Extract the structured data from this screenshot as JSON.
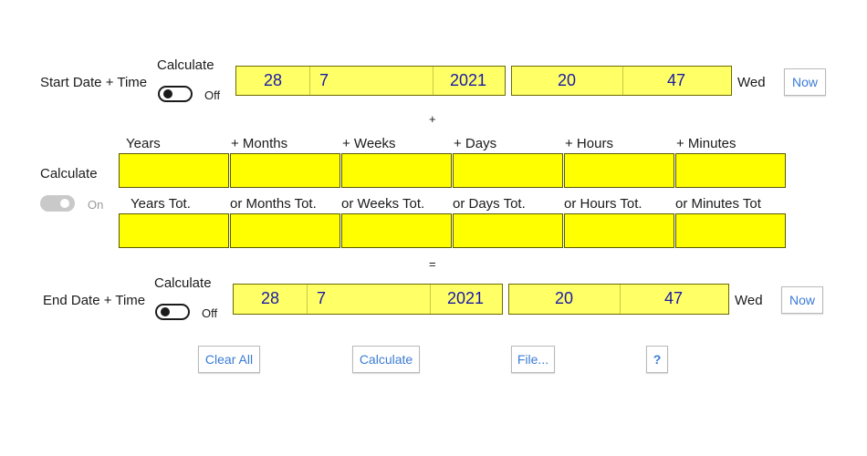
{
  "start": {
    "label": "Start Date + Time",
    "calc_label": "Calculate",
    "toggle_state": "Off",
    "day": "28",
    "month": "7",
    "year": "2021",
    "hour": "20",
    "minute": "47",
    "weekday": "Wed",
    "now_label": "Now"
  },
  "plus_sign": "+",
  "duration": {
    "calc_label": "Calculate",
    "toggle_state": "On",
    "headers": [
      "Years",
      "+ Months",
      "+ Weeks",
      "+ Days",
      "+ Hours",
      "+ Minutes"
    ],
    "total_headers": [
      "Years Tot.",
      "or Months Tot.",
      "or Weeks Tot.",
      "or Days Tot.",
      "or Hours Tot.",
      "or Minutes Tot"
    ],
    "values": [
      "",
      "",
      "",
      "",
      "",
      ""
    ],
    "totals": [
      "",
      "",
      "",
      "",
      "",
      ""
    ]
  },
  "equals_sign": "=",
  "end": {
    "label": "End Date + Time",
    "calc_label": "Calculate",
    "toggle_state": "Off",
    "day": "28",
    "month": "7",
    "year": "2021",
    "hour": "20",
    "minute": "47",
    "weekday": "Wed",
    "now_label": "Now"
  },
  "actions": {
    "clear_all": "Clear All",
    "calculate": "Calculate",
    "file": "File...",
    "help": "?"
  },
  "colors": {
    "date_field": "#ffff66",
    "duration_field": "#ffff00",
    "value_text": "#1a1aa8",
    "button_text": "#3a7bd5"
  }
}
